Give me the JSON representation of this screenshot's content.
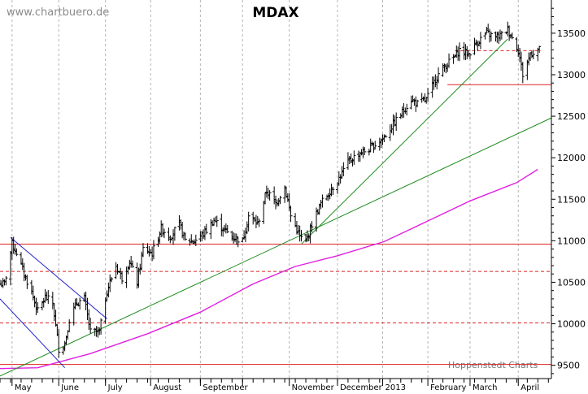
{
  "watermark": "www.chartbuero.de",
  "credit": "Hoppenstedt Charts",
  "chart_data": {
    "type": "ohlc",
    "title": "MDAX",
    "ylim": [
      9340,
      13900
    ],
    "yticks": [
      9500,
      10000,
      10500,
      11000,
      11500,
      12000,
      12500,
      13000,
      13500
    ],
    "x_months": [
      "May",
      "June",
      "July",
      "August",
      "September",
      "November",
      "December",
      "2013",
      "February",
      "March",
      "April"
    ],
    "grid": "vertical dashed at month starts",
    "close_series": [
      {
        "d": "2012-04-26",
        "c": 10480
      },
      {
        "d": "2012-05-01",
        "c": 10960
      },
      {
        "d": "2012-05-04",
        "c": 10860
      },
      {
        "d": "2012-05-09",
        "c": 10600
      },
      {
        "d": "2012-05-14",
        "c": 10380
      },
      {
        "d": "2012-05-18",
        "c": 10150
      },
      {
        "d": "2012-05-23",
        "c": 10320
      },
      {
        "d": "2012-05-28",
        "c": 10250
      },
      {
        "d": "2012-06-01",
        "c": 9700
      },
      {
        "d": "2012-06-05",
        "c": 9760
      },
      {
        "d": "2012-06-08",
        "c": 10050
      },
      {
        "d": "2012-06-13",
        "c": 10250
      },
      {
        "d": "2012-06-18",
        "c": 10300
      },
      {
        "d": "2012-06-22",
        "c": 9900
      },
      {
        "d": "2012-06-28",
        "c": 9900
      },
      {
        "d": "2012-07-03",
        "c": 10400
      },
      {
        "d": "2012-07-09",
        "c": 10700
      },
      {
        "d": "2012-07-13",
        "c": 10550
      },
      {
        "d": "2012-07-18",
        "c": 10750
      },
      {
        "d": "2012-07-23",
        "c": 10500
      },
      {
        "d": "2012-07-27",
        "c": 10900
      },
      {
        "d": "2012-08-02",
        "c": 10850
      },
      {
        "d": "2012-08-08",
        "c": 11150
      },
      {
        "d": "2012-08-14",
        "c": 11050
      },
      {
        "d": "2012-08-20",
        "c": 11200
      },
      {
        "d": "2012-08-24",
        "c": 11000
      },
      {
        "d": "2012-08-30",
        "c": 11000
      },
      {
        "d": "2012-09-06",
        "c": 11100
      },
      {
        "d": "2012-09-12",
        "c": 11250
      },
      {
        "d": "2012-09-18",
        "c": 11150
      },
      {
        "d": "2012-09-24",
        "c": 11050
      },
      {
        "d": "2012-10-01",
        "c": 11000
      },
      {
        "d": "2012-10-05",
        "c": 11300
      },
      {
        "d": "2012-10-11",
        "c": 11200
      },
      {
        "d": "2012-10-17",
        "c": 11600
      },
      {
        "d": "2012-10-23",
        "c": 11450
      },
      {
        "d": "2012-10-29",
        "c": 11650
      },
      {
        "d": "2012-11-02",
        "c": 11300
      },
      {
        "d": "2012-11-08",
        "c": 11050
      },
      {
        "d": "2012-11-12",
        "c": 10980
      },
      {
        "d": "2012-11-16",
        "c": 11200
      },
      {
        "d": "2012-11-22",
        "c": 11450
      },
      {
        "d": "2012-11-28",
        "c": 11600
      },
      {
        "d": "2012-12-04",
        "c": 11750
      },
      {
        "d": "2012-12-10",
        "c": 11950
      },
      {
        "d": "2012-12-17",
        "c": 12050
      },
      {
        "d": "2012-12-24",
        "c": 12100
      },
      {
        "d": "2013-01-03",
        "c": 12250
      },
      {
        "d": "2013-01-09",
        "c": 12400
      },
      {
        "d": "2013-01-15",
        "c": 12550
      },
      {
        "d": "2013-01-21",
        "c": 12700
      },
      {
        "d": "2013-01-25",
        "c": 12650
      },
      {
        "d": "2013-01-31",
        "c": 12700
      },
      {
        "d": "2013-02-06",
        "c": 12950
      },
      {
        "d": "2013-02-12",
        "c": 13100
      },
      {
        "d": "2013-02-18",
        "c": 13200
      },
      {
        "d": "2013-02-22",
        "c": 13300
      },
      {
        "d": "2013-02-28",
        "c": 13250
      },
      {
        "d": "2013-03-06",
        "c": 13400
      },
      {
        "d": "2013-03-12",
        "c": 13500
      },
      {
        "d": "2013-03-18",
        "c": 13450
      },
      {
        "d": "2013-03-22",
        "c": 13480
      },
      {
        "d": "2013-03-26",
        "c": 13550
      },
      {
        "d": "2013-04-02",
        "c": 13300
      },
      {
        "d": "2013-04-05",
        "c": 13000
      },
      {
        "d": "2013-04-10",
        "c": 13250
      },
      {
        "d": "2013-04-15",
        "c": 13300
      }
    ],
    "moving_average": [
      {
        "d": "2012-04-23",
        "v": 9460
      },
      {
        "d": "2012-05-18",
        "v": 9470
      },
      {
        "d": "2012-06-22",
        "v": 9640
      },
      {
        "d": "2012-07-30",
        "v": 9880
      },
      {
        "d": "2012-09-03",
        "v": 10140
      },
      {
        "d": "2012-10-08",
        "v": 10480
      },
      {
        "d": "2012-11-05",
        "v": 10690
      },
      {
        "d": "2012-12-03",
        "v": 10820
      },
      {
        "d": "2013-01-03",
        "v": 10990
      },
      {
        "d": "2013-01-31",
        "v": 11230
      },
      {
        "d": "2013-03-01",
        "v": 11480
      },
      {
        "d": "2013-04-01",
        "v": 11700
      },
      {
        "d": "2013-04-15",
        "v": 11860
      }
    ],
    "lines": [
      {
        "kind": "support",
        "color": "#dd2222",
        "style": "solid",
        "y": 9510
      },
      {
        "kind": "resistance",
        "color": "#dd2222",
        "style": "solid",
        "y": 10960
      },
      {
        "kind": "level",
        "color": "#dd2222",
        "style": "dashed",
        "y": 10630
      },
      {
        "kind": "level",
        "color": "#dd2222",
        "style": "dashed",
        "y": 10010
      },
      {
        "kind": "level",
        "color": "#dd2222",
        "style": "solid",
        "y": 12880,
        "from": "2013-02-14",
        "to": "2013-04-24"
      },
      {
        "kind": "level",
        "color": "#dd2222",
        "style": "dashed",
        "y": 13290,
        "from": "2013-02-19",
        "to": "2013-04-17"
      },
      {
        "kind": "trend",
        "color": "#1e8c1e",
        "p1": {
          "d": "2012-04-23",
          "v": 9370
        },
        "p2": {
          "d": "2013-04-24",
          "v": 12480
        }
      },
      {
        "kind": "trend",
        "color": "#1e8c1e",
        "p1": {
          "d": "2012-11-09",
          "v": 10960
        },
        "p2": {
          "d": "2013-03-26",
          "v": 13430
        }
      },
      {
        "kind": "channel",
        "color": "#2222cc",
        "p1": {
          "d": "2012-04-30",
          "v": 11040
        },
        "p2": {
          "d": "2012-07-03",
          "v": 10060
        }
      },
      {
        "kind": "channel",
        "color": "#2222cc",
        "p1": {
          "d": "2012-04-23",
          "v": 10300
        },
        "p2": {
          "d": "2012-06-05",
          "v": 9470
        }
      }
    ]
  }
}
